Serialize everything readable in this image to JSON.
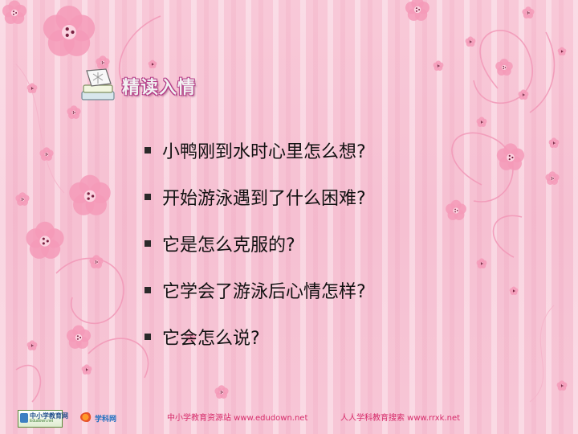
{
  "slide": {
    "heading": {
      "icon": "books-icon",
      "title": "精读入情"
    },
    "questions": [
      "小鸭刚到水时心里怎么想?",
      "开始游泳遇到了什么困难?",
      "它是怎么克服的?",
      "它学会了游泳后心情怎样?",
      "它会怎么说?"
    ],
    "footer": {
      "logo_left": {
        "cn": "中小学教育网",
        "en": "Edudown.net"
      },
      "logo_right": {
        "text": "学科网"
      },
      "credit_left": "中小学教育资源站 www.edudown.net",
      "credit_right": "人人学科教育搜索 www.rrxk.net"
    },
    "colors": {
      "background": "#f7c6d6",
      "flower": "#f39bb8",
      "heading_outline": "#b23a86",
      "credit": "#d62b6a"
    }
  }
}
